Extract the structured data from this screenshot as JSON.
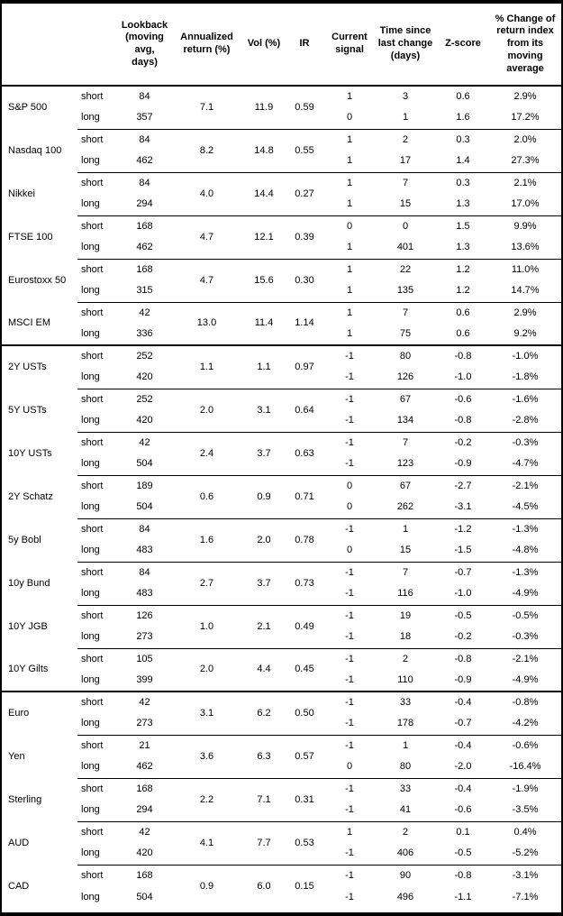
{
  "table": {
    "headers": {
      "asset": "",
      "leg": "",
      "lookback": "Lookback\n(moving\navg, days)",
      "annualized_return": "Annualized\nreturn (%)",
      "vol": "Vol (%)",
      "ir": "IR",
      "current_signal": "Current\nsignal",
      "time_since": "Time since\nlast change\n(days)",
      "zscore": "Z-score",
      "pct_change": "% Change of\nreturn index\nfrom its\nmoving\naverage"
    },
    "sections": [
      {
        "groups": [
          {
            "name": "S&P 500",
            "annualized_return": "7.1",
            "vol": "11.9",
            "ir": "0.59",
            "rows": [
              {
                "leg": "short",
                "lookback": "84",
                "signal": "1",
                "time": "3",
                "zscore": "0.6",
                "pct": "2.9%"
              },
              {
                "leg": "long",
                "lookback": "357",
                "signal": "0",
                "time": "1",
                "zscore": "1.6",
                "pct": "17.2%"
              }
            ]
          },
          {
            "name": "Nasdaq 100",
            "annualized_return": "8.2",
            "vol": "14.8",
            "ir": "0.55",
            "rows": [
              {
                "leg": "short",
                "lookback": "84",
                "signal": "1",
                "time": "2",
                "zscore": "0.3",
                "pct": "2.0%"
              },
              {
                "leg": "long",
                "lookback": "462",
                "signal": "1",
                "time": "17",
                "zscore": "1.4",
                "pct": "27.3%"
              }
            ]
          },
          {
            "name": "Nikkei",
            "annualized_return": "4.0",
            "vol": "14.4",
            "ir": "0.27",
            "rows": [
              {
                "leg": "short",
                "lookback": "84",
                "signal": "1",
                "time": "7",
                "zscore": "0.3",
                "pct": "2.1%"
              },
              {
                "leg": "long",
                "lookback": "294",
                "signal": "1",
                "time": "15",
                "zscore": "1.3",
                "pct": "17.0%"
              }
            ]
          },
          {
            "name": "FTSE 100",
            "annualized_return": "4.7",
            "vol": "12.1",
            "ir": "0.39",
            "rows": [
              {
                "leg": "short",
                "lookback": "168",
                "signal": "0",
                "time": "0",
                "zscore": "1.5",
                "pct": "9.9%"
              },
              {
                "leg": "long",
                "lookback": "462",
                "signal": "1",
                "time": "401",
                "zscore": "1.3",
                "pct": "13.6%"
              }
            ]
          },
          {
            "name": "Eurostoxx 50",
            "annualized_return": "4.7",
            "vol": "15.6",
            "ir": "0.30",
            "rows": [
              {
                "leg": "short",
                "lookback": "168",
                "signal": "1",
                "time": "22",
                "zscore": "1.2",
                "pct": "11.0%"
              },
              {
                "leg": "long",
                "lookback": "315",
                "signal": "1",
                "time": "135",
                "zscore": "1.2",
                "pct": "14.7%"
              }
            ]
          },
          {
            "name": "MSCI EM",
            "annualized_return": "13.0",
            "vol": "11.4",
            "ir": "1.14",
            "rows": [
              {
                "leg": "short",
                "lookback": "42",
                "signal": "1",
                "time": "7",
                "zscore": "0.6",
                "pct": "2.9%"
              },
              {
                "leg": "long",
                "lookback": "336",
                "signal": "1",
                "time": "75",
                "zscore": "0.6",
                "pct": "9.2%"
              }
            ]
          }
        ]
      },
      {
        "groups": [
          {
            "name": "2Y USTs",
            "annualized_return": "1.1",
            "vol": "1.1",
            "ir": "0.97",
            "rows": [
              {
                "leg": "short",
                "lookback": "252",
                "signal": "-1",
                "time": "80",
                "zscore": "-0.8",
                "pct": "-1.0%"
              },
              {
                "leg": "long",
                "lookback": "420",
                "signal": "-1",
                "time": "126",
                "zscore": "-1.0",
                "pct": "-1.8%"
              }
            ]
          },
          {
            "name": "5Y USTs",
            "annualized_return": "2.0",
            "vol": "3.1",
            "ir": "0.64",
            "rows": [
              {
                "leg": "short",
                "lookback": "252",
                "signal": "-1",
                "time": "67",
                "zscore": "-0.6",
                "pct": "-1.6%"
              },
              {
                "leg": "long",
                "lookback": "420",
                "signal": "-1",
                "time": "134",
                "zscore": "-0.8",
                "pct": "-2.8%"
              }
            ]
          },
          {
            "name": "10Y USTs",
            "annualized_return": "2.4",
            "vol": "3.7",
            "ir": "0.63",
            "rows": [
              {
                "leg": "short",
                "lookback": "42",
                "signal": "-1",
                "time": "7",
                "zscore": "-0.2",
                "pct": "-0.3%"
              },
              {
                "leg": "long",
                "lookback": "504",
                "signal": "-1",
                "time": "123",
                "zscore": "-0.9",
                "pct": "-4.7%"
              }
            ]
          },
          {
            "name": "2Y Schatz",
            "annualized_return": "0.6",
            "vol": "0.9",
            "ir": "0.71",
            "rows": [
              {
                "leg": "short",
                "lookback": "189",
                "signal": "0",
                "time": "67",
                "zscore": "-2.7",
                "pct": "-2.1%"
              },
              {
                "leg": "long",
                "lookback": "504",
                "signal": "0",
                "time": "262",
                "zscore": "-3.1",
                "pct": "-4.5%"
              }
            ]
          },
          {
            "name": "5y Bobl",
            "annualized_return": "1.6",
            "vol": "2.0",
            "ir": "0.78",
            "rows": [
              {
                "leg": "short",
                "lookback": "84",
                "signal": "-1",
                "time": "1",
                "zscore": "-1.2",
                "pct": "-1.3%"
              },
              {
                "leg": "long",
                "lookback": "483",
                "signal": "0",
                "time": "15",
                "zscore": "-1.5",
                "pct": "-4.8%"
              }
            ]
          },
          {
            "name": "10y Bund",
            "annualized_return": "2.7",
            "vol": "3.7",
            "ir": "0.73",
            "rows": [
              {
                "leg": "short",
                "lookback": "84",
                "signal": "-1",
                "time": "7",
                "zscore": "-0.7",
                "pct": "-1.3%"
              },
              {
                "leg": "long",
                "lookback": "483",
                "signal": "-1",
                "time": "116",
                "zscore": "-1.0",
                "pct": "-4.9%"
              }
            ]
          },
          {
            "name": "10Y JGB",
            "annualized_return": "1.0",
            "vol": "2.1",
            "ir": "0.49",
            "rows": [
              {
                "leg": "short",
                "lookback": "126",
                "signal": "-1",
                "time": "19",
                "zscore": "-0.5",
                "pct": "-0.5%"
              },
              {
                "leg": "long",
                "lookback": "273",
                "signal": "-1",
                "time": "18",
                "zscore": "-0.2",
                "pct": "-0.3%"
              }
            ]
          },
          {
            "name": "10Y Gilts",
            "annualized_return": "2.0",
            "vol": "4.4",
            "ir": "0.45",
            "rows": [
              {
                "leg": "short",
                "lookback": "105",
                "signal": "-1",
                "time": "2",
                "zscore": "-0.8",
                "pct": "-2.1%"
              },
              {
                "leg": "long",
                "lookback": "399",
                "signal": "-1",
                "time": "110",
                "zscore": "-0.9",
                "pct": "-4.9%"
              }
            ]
          }
        ]
      },
      {
        "groups": [
          {
            "name": "Euro",
            "annualized_return": "3.1",
            "vol": "6.2",
            "ir": "0.50",
            "rows": [
              {
                "leg": "short",
                "lookback": "42",
                "signal": "-1",
                "time": "33",
                "zscore": "-0.4",
                "pct": "-0.8%"
              },
              {
                "leg": "long",
                "lookback": "273",
                "signal": "-1",
                "time": "178",
                "zscore": "-0.7",
                "pct": "-4.2%"
              }
            ]
          },
          {
            "name": "Yen",
            "annualized_return": "3.6",
            "vol": "6.3",
            "ir": "0.57",
            "rows": [
              {
                "leg": "short",
                "lookback": "21",
                "signal": "-1",
                "time": "1",
                "zscore": "-0.4",
                "pct": "-0.6%"
              },
              {
                "leg": "long",
                "lookback": "462",
                "signal": "0",
                "time": "80",
                "zscore": "-2.0",
                "pct": "-16.4%"
              }
            ]
          },
          {
            "name": "Sterling",
            "annualized_return": "2.2",
            "vol": "7.1",
            "ir": "0.31",
            "rows": [
              {
                "leg": "short",
                "lookback": "168",
                "signal": "-1",
                "time": "33",
                "zscore": "-0.4",
                "pct": "-1.9%"
              },
              {
                "leg": "long",
                "lookback": "294",
                "signal": "-1",
                "time": "41",
                "zscore": "-0.6",
                "pct": "-3.5%"
              }
            ]
          },
          {
            "name": "AUD",
            "annualized_return": "4.1",
            "vol": "7.7",
            "ir": "0.53",
            "rows": [
              {
                "leg": "short",
                "lookback": "42",
                "signal": "1",
                "time": "2",
                "zscore": "0.1",
                "pct": "0.4%"
              },
              {
                "leg": "long",
                "lookback": "420",
                "signal": "-1",
                "time": "406",
                "zscore": "-0.5",
                "pct": "-5.2%"
              }
            ]
          },
          {
            "name": "CAD",
            "annualized_return": "0.9",
            "vol": "6.0",
            "ir": "0.15",
            "rows": [
              {
                "leg": "short",
                "lookback": "168",
                "signal": "-1",
                "time": "90",
                "zscore": "-0.8",
                "pct": "-3.1%"
              },
              {
                "leg": "long",
                "lookback": "504",
                "signal": "-1",
                "time": "496",
                "zscore": "-1.1",
                "pct": "-7.1%"
              }
            ]
          }
        ]
      }
    ]
  }
}
